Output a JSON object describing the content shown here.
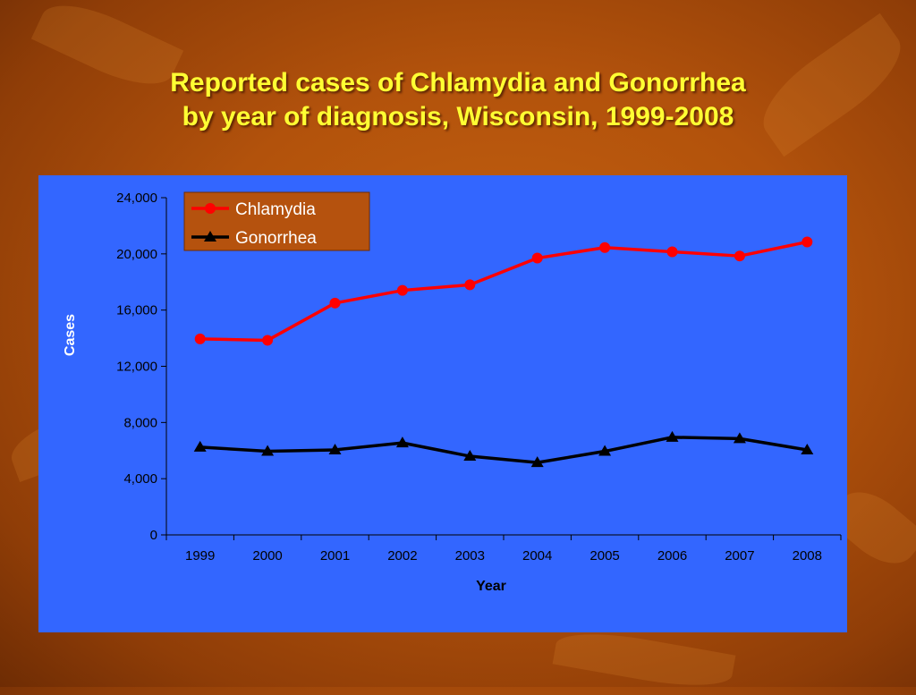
{
  "slide": {
    "title_line1": "Reported cases of Chlamydia and Gonorrhea",
    "title_line2": "by year of diagnosis, Wisconsin, 1999-2008"
  },
  "colors": {
    "background": "#b2520c",
    "title": "#ffff33",
    "plot_background": "#3366ff",
    "legend_background": "#b5520e",
    "chlamydia": "#ff0000",
    "gonorrhea": "#000000"
  },
  "chart_data": {
    "type": "line",
    "title": "Reported cases of Chlamydia and Gonorrhea by year of diagnosis, Wisconsin, 1999-2008",
    "xlabel": "Year",
    "ylabel": "Cases",
    "categories": [
      "1999",
      "2000",
      "2001",
      "2002",
      "2003",
      "2004",
      "2005",
      "2006",
      "2007",
      "2008"
    ],
    "ylim": [
      0,
      24000
    ],
    "yticks": [
      0,
      4000,
      8000,
      12000,
      16000,
      20000,
      24000
    ],
    "ytick_labels": [
      "0",
      "4,000",
      "8,000",
      "12,000",
      "16,000",
      "20,000",
      "24,000"
    ],
    "grid": false,
    "legend_position": "top-left",
    "series": [
      {
        "name": "Chlamydia",
        "marker": "circle",
        "color": "#ff0000",
        "values": [
          13950,
          13850,
          16500,
          17400,
          17800,
          19700,
          20450,
          20150,
          19850,
          20850
        ]
      },
      {
        "name": "Gonorrhea",
        "marker": "triangle",
        "color": "#000000",
        "values": [
          6250,
          5950,
          6050,
          6550,
          5600,
          5150,
          5950,
          6950,
          6850,
          6050
        ]
      }
    ]
  }
}
